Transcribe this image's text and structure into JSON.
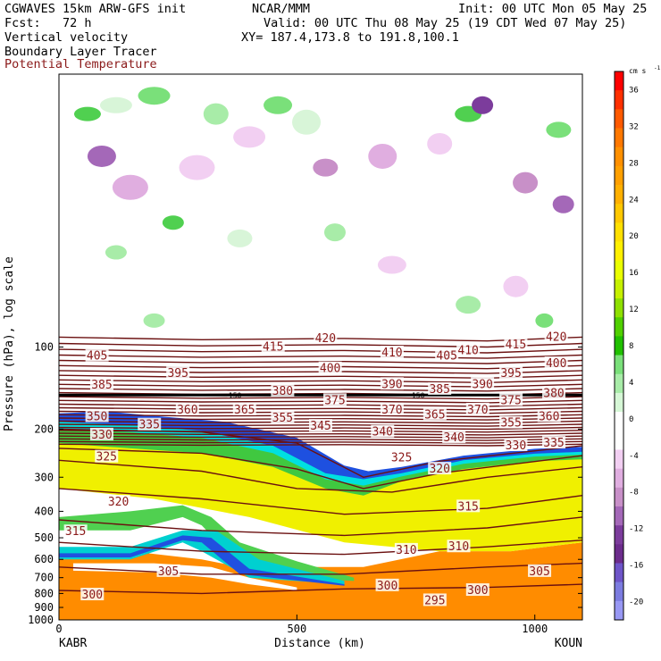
{
  "header": {
    "model_line": "CGWAVES 15km ARW-GFS init",
    "source": "NCAR/MMM",
    "init": "Init: 00 UTC Mon 05 May 25",
    "fcst": "Fcst:   72 h",
    "valid": "Valid: 00 UTC Thu 08 May 25 (19 CDT Wed 07 May 25)",
    "xy": "XY= 187.4,173.8 to 191.8,100.1",
    "field1": "Vertical velocity",
    "field2": "Boundary Layer Tracer",
    "field3": "Potential Temperature"
  },
  "colors": {
    "theta_line": "#6b1010",
    "theta_label": "#8b1a1a",
    "bl_tracer": "#ff8c00"
  },
  "chart_data": {
    "type": "cross-section",
    "ylabel": "Pressure (hPa), log scale",
    "xlabel": "Distance (km)",
    "y_scale": "log",
    "ylim": [
      1000,
      10
    ],
    "xlim": [
      0,
      1100
    ],
    "x_ticks": [
      "0",
      "500",
      "1000"
    ],
    "x_tick_values": [
      0,
      500,
      1000
    ],
    "y_ticks": [
      "100",
      "200",
      "300",
      "400",
      "500",
      "600",
      "700",
      "800",
      "900",
      "1000"
    ],
    "y_tick_values": [
      100,
      200,
      300,
      400,
      500,
      600,
      700,
      800,
      900,
      1000
    ],
    "left_station": "KABR",
    "right_station": "KOUN",
    "colorbar": {
      "unit_label": "cm s",
      "unit_exponent": "-1",
      "labels": [
        "36",
        "32",
        "28",
        "24",
        "20",
        "16",
        "12",
        "8",
        "4",
        "0",
        "-4",
        "-8",
        "-12",
        "-16",
        "-20"
      ],
      "label_values": [
        36,
        32,
        28,
        24,
        20,
        16,
        12,
        8,
        4,
        0,
        -4,
        -8,
        -12,
        -16,
        -20
      ],
      "colors": [
        "#ff0000",
        "#ff3000",
        "#ff5a00",
        "#ff7800",
        "#ff9000",
        "#ffa000",
        "#ffb000",
        "#ffc800",
        "#ffe000",
        "#fff000",
        "#eaff00",
        "#c6f000",
        "#8ee000",
        "#50d000",
        "#20c000",
        "#7ae07a",
        "#a8eca8",
        "#d6f7d6",
        "#ffffff",
        "#ffffff",
        "#f2cff2",
        "#e0aee0",
        "#c890c8",
        "#a468b8",
        "#7c3c9c",
        "#6c2c8c",
        "#6e55c8",
        "#7c7ce0",
        "#9898f4"
      ]
    },
    "theta_isentropes": [
      {
        "label": "420",
        "x": 560,
        "p": 93
      },
      {
        "label": "415",
        "x": 450,
        "p": 100
      },
      {
        "label": "405",
        "x": 80,
        "p": 108
      },
      {
        "label": "410",
        "x": 700,
        "p": 105
      },
      {
        "label": "405",
        "x": 815,
        "p": 108
      },
      {
        "label": "410",
        "x": 860,
        "p": 103
      },
      {
        "label": "415",
        "x": 960,
        "p": 98
      },
      {
        "label": "420",
        "x": 1045,
        "p": 92
      },
      {
        "label": "395",
        "x": 250,
        "p": 125
      },
      {
        "label": "400",
        "x": 570,
        "p": 120
      },
      {
        "label": "390",
        "x": 700,
        "p": 137
      },
      {
        "label": "390",
        "x": 890,
        "p": 137
      },
      {
        "label": "395",
        "x": 950,
        "p": 125
      },
      {
        "label": "400",
        "x": 1045,
        "p": 115
      },
      {
        "label": "385",
        "x": 90,
        "p": 138
      },
      {
        "label": "380",
        "x": 470,
        "p": 145
      },
      {
        "label": "385",
        "x": 800,
        "p": 143
      },
      {
        "label": "380",
        "x": 1040,
        "p": 148
      },
      {
        "label": "375",
        "x": 580,
        "p": 157
      },
      {
        "label": "375",
        "x": 950,
        "p": 157
      },
      {
        "label": "360",
        "x": 270,
        "p": 170
      },
      {
        "label": "365",
        "x": 390,
        "p": 170
      },
      {
        "label": "370",
        "x": 700,
        "p": 170
      },
      {
        "label": "365",
        "x": 790,
        "p": 177
      },
      {
        "label": "370",
        "x": 880,
        "p": 170
      },
      {
        "label": "360",
        "x": 1030,
        "p": 180
      },
      {
        "label": "350",
        "x": 80,
        "p": 180
      },
      {
        "label": "355",
        "x": 470,
        "p": 182
      },
      {
        "label": "355",
        "x": 950,
        "p": 190
      },
      {
        "label": "345",
        "x": 550,
        "p": 195
      },
      {
        "label": "335",
        "x": 190,
        "p": 193
      },
      {
        "label": "340",
        "x": 680,
        "p": 205
      },
      {
        "label": "340",
        "x": 830,
        "p": 215
      },
      {
        "label": "330",
        "x": 90,
        "p": 210
      },
      {
        "label": "330",
        "x": 960,
        "p": 230
      },
      {
        "label": "335",
        "x": 1040,
        "p": 225
      },
      {
        "label": "325",
        "x": 100,
        "p": 253
      },
      {
        "label": "325",
        "x": 720,
        "p": 255
      },
      {
        "label": "320",
        "x": 800,
        "p": 280
      },
      {
        "label": "320",
        "x": 125,
        "p": 370
      },
      {
        "label": "315",
        "x": 860,
        "p": 385
      },
      {
        "label": "315",
        "x": 35,
        "p": 475
      },
      {
        "label": "310",
        "x": 730,
        "p": 555
      },
      {
        "label": "310",
        "x": 840,
        "p": 540
      },
      {
        "label": "305",
        "x": 230,
        "p": 665
      },
      {
        "label": "305",
        "x": 1010,
        "p": 665
      },
      {
        "label": "300",
        "x": 70,
        "p": 810
      },
      {
        "label": "300",
        "x": 690,
        "p": 750
      },
      {
        "label": "300",
        "x": 880,
        "p": 780
      },
      {
        "label": "295",
        "x": 790,
        "p": 850
      }
    ],
    "small_labels": [
      {
        "label": "150",
        "x": 370,
        "p": 150
      },
      {
        "label": "150",
        "x": 755,
        "p": 150
      }
    ]
  }
}
